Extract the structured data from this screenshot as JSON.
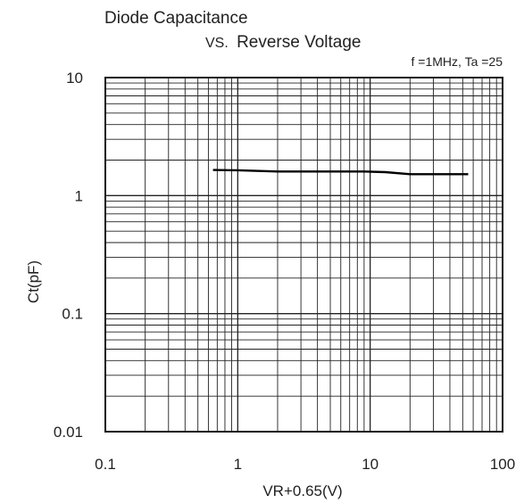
{
  "chart_data": {
    "type": "line",
    "title_line1": "Diode Capacitance",
    "title_line2_prefix": "VS.",
    "title_line2_main": "Reverse Voltage",
    "conditions": "f =1MHz, Ta =25",
    "xlabel": "VR+0.65(V)",
    "ylabel": "Ct(pF)",
    "xscale": "log",
    "yscale": "log",
    "xlim": [
      0.1,
      100
    ],
    "ylim": [
      0.01,
      10
    ],
    "grid": true,
    "x_ticks": [
      {
        "value": 0.1,
        "label": "0.1"
      },
      {
        "value": 1,
        "label": "1"
      },
      {
        "value": 10,
        "label": "10"
      },
      {
        "value": 100,
        "label": "100"
      }
    ],
    "y_ticks": [
      {
        "value": 10,
        "label": "10"
      },
      {
        "value": 1,
        "label": "1"
      },
      {
        "value": 0.1,
        "label": "0.1"
      },
      {
        "value": 0.01,
        "label": "0.01"
      }
    ],
    "series": [
      {
        "color": "#000000",
        "points": [
          {
            "x": 0.65,
            "y": 1.65
          },
          {
            "x": 1.0,
            "y": 1.64
          },
          {
            "x": 2.0,
            "y": 1.6
          },
          {
            "x": 5.0,
            "y": 1.6
          },
          {
            "x": 9.0,
            "y": 1.6
          },
          {
            "x": 13.0,
            "y": 1.58
          },
          {
            "x": 20.0,
            "y": 1.52
          },
          {
            "x": 30.0,
            "y": 1.52
          },
          {
            "x": 55.0,
            "y": 1.52
          }
        ]
      }
    ]
  }
}
